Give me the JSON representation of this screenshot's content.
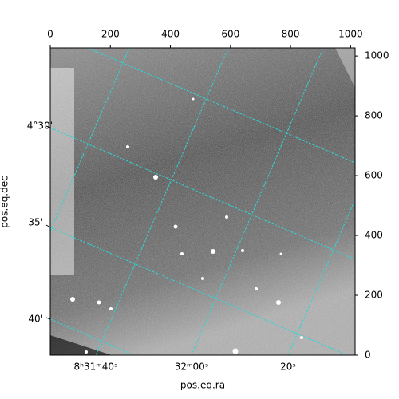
{
  "chart_data": {
    "type": "image",
    "x_label": "pos.eq.ra",
    "y_label": "pos.eq.dec",
    "xlim": [
      0,
      1015
    ],
    "xticks": [
      0,
      200,
      400,
      600,
      800,
      1000
    ],
    "ylim": [
      0,
      1027
    ],
    "yticks": [
      0,
      200,
      400,
      600,
      800,
      1000
    ],
    "ra_ticks": [
      "8ʰ31ᵐ40ˢ",
      "32ᵐ00ˢ",
      "20ˢ"
    ],
    "dec_ticks": [
      "4°30'",
      "35'",
      "40'"
    ]
  }
}
